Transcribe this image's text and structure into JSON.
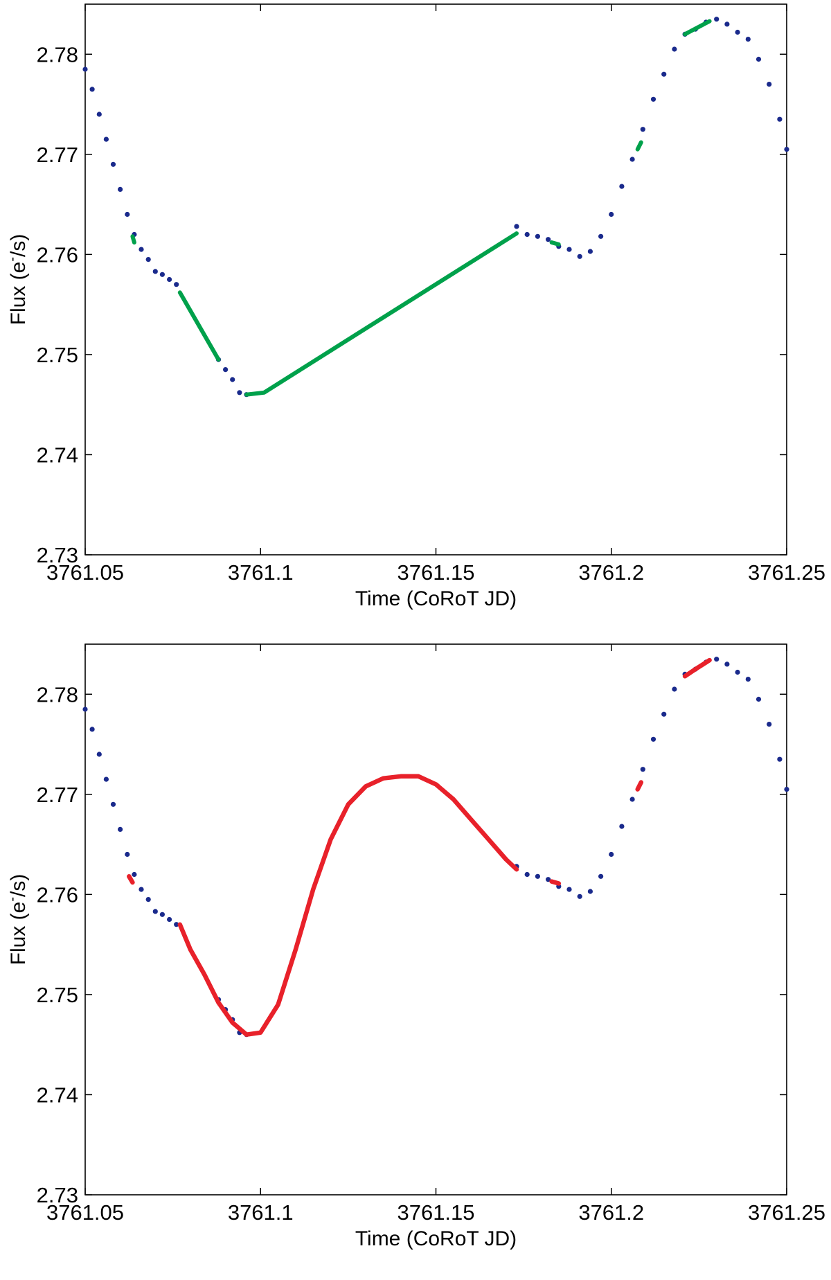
{
  "chart_data": [
    {
      "type": "scatter",
      "xlabel": "Time (CoRoT JD)",
      "ylabel_main": "Flux (e",
      "ylabel_sup": "-",
      "ylabel_tail": "/s)",
      "xlim": [
        3761.05,
        3761.25
      ],
      "ylim": [
        2.73,
        2.785
      ],
      "xticks": [
        3761.05,
        3761.1,
        3761.15,
        3761.2,
        3761.25
      ],
      "xtick_labels": [
        "3761.05",
        "3761.1",
        "3761.15",
        "3761.2",
        "3761.25"
      ],
      "yticks": [
        2.73,
        2.74,
        2.75,
        2.76,
        2.77,
        2.78
      ],
      "ytick_labels": [
        "2.73",
        "2.74",
        "2.75",
        "2.76",
        "2.77",
        "2.78"
      ],
      "grid": false,
      "series": [
        {
          "color": "#1a2a8c",
          "style": "points",
          "points": [
            [
              3761.05,
              2.7785
            ],
            [
              3761.052,
              2.7765
            ],
            [
              3761.054,
              2.774
            ],
            [
              3761.056,
              2.7715
            ],
            [
              3761.058,
              2.769
            ],
            [
              3761.06,
              2.7665
            ],
            [
              3761.062,
              2.764
            ],
            [
              3761.064,
              2.762
            ],
            [
              3761.066,
              2.7605
            ],
            [
              3761.068,
              2.7595
            ],
            [
              3761.07,
              2.7583
            ],
            [
              3761.072,
              2.758
            ],
            [
              3761.074,
              2.7575
            ],
            [
              3761.076,
              2.757
            ],
            [
              3761.088,
              2.7495
            ],
            [
              3761.09,
              2.7485
            ],
            [
              3761.092,
              2.7475
            ],
            [
              3761.094,
              2.7462
            ],
            [
              3761.096,
              2.746
            ],
            [
              3761.173,
              2.7628
            ],
            [
              3761.176,
              2.762
            ],
            [
              3761.179,
              2.7618
            ],
            [
              3761.182,
              2.7615
            ],
            [
              3761.185,
              2.7608
            ],
            [
              3761.188,
              2.7605
            ],
            [
              3761.191,
              2.7598
            ],
            [
              3761.194,
              2.7603
            ],
            [
              3761.197,
              2.7618
            ],
            [
              3761.2,
              2.764
            ],
            [
              3761.203,
              2.7668
            ],
            [
              3761.206,
              2.7695
            ],
            [
              3761.209,
              2.7725
            ],
            [
              3761.212,
              2.7755
            ],
            [
              3761.215,
              2.778
            ],
            [
              3761.218,
              2.7805
            ],
            [
              3761.221,
              2.782
            ],
            [
              3761.224,
              2.7825
            ],
            [
              3761.227,
              2.7832
            ],
            [
              3761.23,
              2.7835
            ],
            [
              3761.233,
              2.783
            ],
            [
              3761.236,
              2.7822
            ],
            [
              3761.239,
              2.7815
            ],
            [
              3761.242,
              2.7795
            ],
            [
              3761.245,
              2.777
            ],
            [
              3761.248,
              2.7735
            ],
            [
              3761.25,
              2.7705
            ]
          ]
        },
        {
          "color": "#00a14b",
          "style": "line",
          "segments": [
            [
              [
                3761.0635,
                2.7618
              ],
              [
                3761.064,
                2.7612
              ]
            ],
            [
              [
                3761.077,
                2.7562
              ],
              [
                3761.088,
                2.7495
              ]
            ],
            [
              [
                3761.096,
                2.746
              ],
              [
                3761.101,
                2.7462
              ],
              [
                3761.173,
                2.7621
              ]
            ],
            [
              [
                3761.183,
                2.7612
              ],
              [
                3761.185,
                2.761
              ]
            ],
            [
              [
                3761.2075,
                2.7705
              ],
              [
                3761.2085,
                2.7712
              ]
            ],
            [
              [
                3761.221,
                2.782
              ],
              [
                3761.228,
                2.7833
              ]
            ]
          ]
        }
      ]
    },
    {
      "type": "scatter",
      "xlabel": "Time (CoRoT JD)",
      "ylabel_main": "Flux (e",
      "ylabel_sup": "-",
      "ylabel_tail": "/s)",
      "xlim": [
        3761.05,
        3761.25
      ],
      "ylim": [
        2.73,
        2.785
      ],
      "xticks": [
        3761.05,
        3761.1,
        3761.15,
        3761.2,
        3761.25
      ],
      "xtick_labels": [
        "3761.05",
        "3761.1",
        "3761.15",
        "3761.2",
        "3761.25"
      ],
      "yticks": [
        2.73,
        2.74,
        2.75,
        2.76,
        2.77,
        2.78
      ],
      "ytick_labels": [
        "2.73",
        "2.74",
        "2.75",
        "2.76",
        "2.77",
        "2.78"
      ],
      "grid": false,
      "series": [
        {
          "color": "#1a2a8c",
          "style": "points",
          "points": [
            [
              3761.05,
              2.7785
            ],
            [
              3761.052,
              2.7765
            ],
            [
              3761.054,
              2.774
            ],
            [
              3761.056,
              2.7715
            ],
            [
              3761.058,
              2.769
            ],
            [
              3761.06,
              2.7665
            ],
            [
              3761.062,
              2.764
            ],
            [
              3761.064,
              2.762
            ],
            [
              3761.066,
              2.7605
            ],
            [
              3761.068,
              2.7595
            ],
            [
              3761.07,
              2.7583
            ],
            [
              3761.072,
              2.758
            ],
            [
              3761.074,
              2.7575
            ],
            [
              3761.076,
              2.757
            ],
            [
              3761.088,
              2.7495
            ],
            [
              3761.09,
              2.7485
            ],
            [
              3761.092,
              2.7475
            ],
            [
              3761.094,
              2.7462
            ],
            [
              3761.096,
              2.746
            ],
            [
              3761.173,
              2.7628
            ],
            [
              3761.176,
              2.762
            ],
            [
              3761.179,
              2.7618
            ],
            [
              3761.182,
              2.7615
            ],
            [
              3761.185,
              2.7608
            ],
            [
              3761.188,
              2.7605
            ],
            [
              3761.191,
              2.7598
            ],
            [
              3761.194,
              2.7603
            ],
            [
              3761.197,
              2.7618
            ],
            [
              3761.2,
              2.764
            ],
            [
              3761.203,
              2.7668
            ],
            [
              3761.206,
              2.7695
            ],
            [
              3761.209,
              2.7725
            ],
            [
              3761.212,
              2.7755
            ],
            [
              3761.215,
              2.778
            ],
            [
              3761.218,
              2.7805
            ],
            [
              3761.221,
              2.782
            ],
            [
              3761.224,
              2.7825
            ],
            [
              3761.227,
              2.7832
            ],
            [
              3761.23,
              2.7835
            ],
            [
              3761.233,
              2.783
            ],
            [
              3761.236,
              2.7822
            ],
            [
              3761.239,
              2.7815
            ],
            [
              3761.242,
              2.7795
            ],
            [
              3761.245,
              2.777
            ],
            [
              3761.248,
              2.7735
            ],
            [
              3761.25,
              2.7705
            ]
          ]
        },
        {
          "color": "#e8212a",
          "style": "curve",
          "segments": [
            [
              [
                3761.0625,
                2.7618
              ],
              [
                3761.0635,
                2.7612
              ]
            ],
            [
              [
                3761.077,
                2.757
              ],
              [
                3761.08,
                2.7545
              ],
              [
                3761.084,
                2.752
              ],
              [
                3761.088,
                2.7492
              ],
              [
                3761.092,
                2.7472
              ],
              [
                3761.096,
                2.746
              ],
              [
                3761.1,
                2.7462
              ],
              [
                3761.105,
                2.749
              ],
              [
                3761.11,
                2.7545
              ],
              [
                3761.115,
                2.7605
              ],
              [
                3761.12,
                2.7655
              ],
              [
                3761.125,
                2.769
              ],
              [
                3761.13,
                2.7708
              ],
              [
                3761.135,
                2.7716
              ],
              [
                3761.14,
                2.7718
              ],
              [
                3761.145,
                2.7718
              ],
              [
                3761.15,
                2.771
              ],
              [
                3761.155,
                2.7695
              ],
              [
                3761.16,
                2.7675
              ],
              [
                3761.165,
                2.7655
              ],
              [
                3761.17,
                2.7635
              ],
              [
                3761.173,
                2.7625
              ]
            ],
            [
              [
                3761.183,
                2.7613
              ],
              [
                3761.185,
                2.7611
              ]
            ],
            [
              [
                3761.2075,
                2.7705
              ],
              [
                3761.2085,
                2.7712
              ]
            ],
            [
              [
                3761.221,
                2.7818
              ],
              [
                3761.224,
                2.7825
              ],
              [
                3761.228,
                2.7834
              ]
            ]
          ]
        }
      ]
    }
  ]
}
